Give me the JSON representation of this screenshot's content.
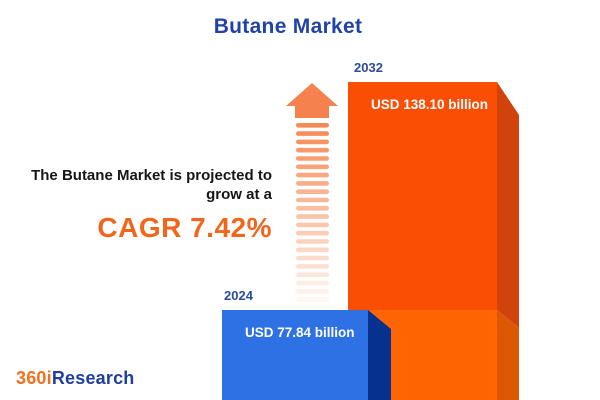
{
  "title": "Butane Market",
  "promo": {
    "line1": "The Butane Market is projected to",
    "line2": "grow at a",
    "cagr": "CAGR 7.42%"
  },
  "chart_data": {
    "type": "bar",
    "title": "Butane Market",
    "categories": [
      "2024",
      "2032"
    ],
    "values": [
      77.84,
      138.1
    ],
    "unit": "USD billion",
    "value_labels": [
      "USD 77.84 billion",
      "USD 138.10 billion"
    ],
    "cagr_percent": 7.42,
    "legend": "none",
    "axes": "none (pictorial 3D bars with growth arrow)"
  },
  "arrow": {
    "meaning": "growth-up-arrow",
    "stripe_count": 22
  },
  "logo": {
    "part1": "360i",
    "part2": "Research"
  },
  "colors": {
    "title_blue": "#2243A6",
    "year_label_blue": "#2B4BA0",
    "body_text": "#161616",
    "accent_orange": "#F4651C",
    "bar2032_front": "#FB4E05",
    "bar2032_front_lower": "#FF6502",
    "bar2032_side": "#D2430B",
    "bar2032_side_lower": "#DC5803",
    "bar2024_front": "#2E71E5",
    "bar2024_side": "#06318F",
    "arrow_head": "#F5814E",
    "arrow_stripe_from": "#F78955",
    "arrow_stripe_to": "#FDF6F1",
    "logo_orange": "#F36F21",
    "logo_blue": "#1F3F9E"
  }
}
